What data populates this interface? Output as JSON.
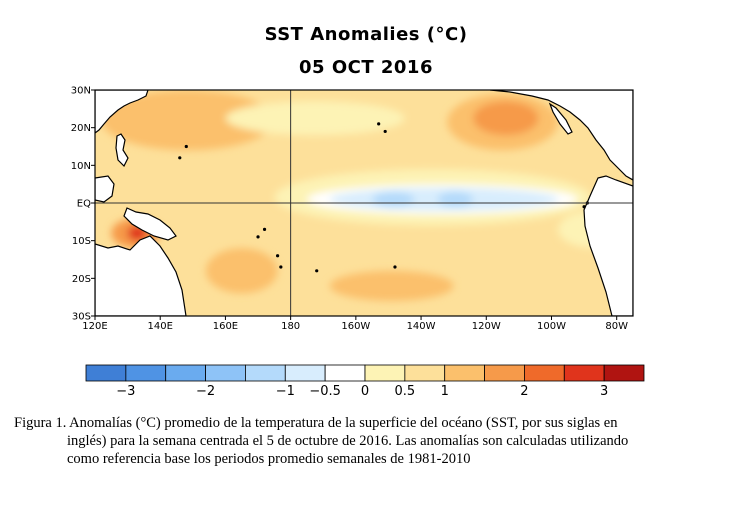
{
  "title": "SST Anomalies (°C)",
  "subtitle": "05 OCT 2016",
  "caption": {
    "line1": "Figura 1. Anomalías (°C) promedio de la temperatura de la superficie del océano (SST, por sus siglas en",
    "line2": "inglés) para la semana centrada el 5 de octubre de 2016. Las anomalías son calculadas utilizando",
    "line3": "como referencia base los periodos promedio semanales de 1981-2010"
  },
  "chart_data": {
    "type": "heatmap",
    "title": "SST Anomalies (°C)",
    "subtitle": "05 OCT 2016",
    "xlim": [
      120,
      285
    ],
    "ylim": [
      -30,
      30
    ],
    "x_ticks": [
      {
        "value": 120,
        "label": "120E"
      },
      {
        "value": 140,
        "label": "140E"
      },
      {
        "value": 160,
        "label": "160E"
      },
      {
        "value": 180,
        "label": "180"
      },
      {
        "value": 200,
        "label": "160W"
      },
      {
        "value": 220,
        "label": "140W"
      },
      {
        "value": 240,
        "label": "120W"
      },
      {
        "value": 260,
        "label": "100W"
      },
      {
        "value": 280,
        "label": "80W"
      }
    ],
    "y_ticks": [
      {
        "value": 30,
        "label": "30N"
      },
      {
        "value": 20,
        "label": "20N"
      },
      {
        "value": 10,
        "label": "10N"
      },
      {
        "value": 0,
        "label": "EQ"
      },
      {
        "value": -10,
        "label": "10S"
      },
      {
        "value": -20,
        "label": "20S"
      },
      {
        "value": -30,
        "label": "30S"
      }
    ],
    "reference_lines": {
      "equator_lat": 0,
      "dateline_lon": 180
    },
    "colorbar": {
      "bounds": [
        -3.5,
        -3,
        -2.5,
        -2,
        -1.5,
        -1,
        -0.5,
        0,
        0.5,
        1,
        1.5,
        2,
        2.5,
        3,
        3.5
      ],
      "colors": [
        "#3f7fd6",
        "#4f93e4",
        "#6aabef",
        "#8ec3f7",
        "#b4dafb",
        "#d8edfd",
        "#ffffff",
        "#fdf3b5",
        "#fde09a",
        "#fbc06c",
        "#f69a4a",
        "#ef6a2a",
        "#e0341c",
        "#b01411"
      ],
      "tick_labels": [
        {
          "value": -3,
          "label": "−3"
        },
        {
          "value": -2,
          "label": "−2"
        },
        {
          "value": -1,
          "label": "−1"
        },
        {
          "value": -0.5,
          "label": "−0.5"
        },
        {
          "value": 0,
          "label": "0"
        },
        {
          "value": 0.5,
          "label": "0.5"
        },
        {
          "value": 1,
          "label": "1"
        },
        {
          "value": 2,
          "label": "2"
        },
        {
          "value": 3,
          "label": "3"
        }
      ]
    },
    "anomaly_regions": [
      {
        "lon": [
          120,
          285
        ],
        "lat": [
          -30,
          30
        ],
        "value": 0.75
      },
      {
        "lon": [
          122,
          175
        ],
        "lat": [
          14,
          30
        ],
        "value": 1.25
      },
      {
        "lon": [
          160,
          215
        ],
        "lat": [
          18,
          27
        ],
        "value": 0.25
      },
      {
        "lon": [
          228,
          262
        ],
        "lat": [
          14,
          29
        ],
        "value": 1.25
      },
      {
        "lon": [
          236,
          256
        ],
        "lat": [
          18,
          27
        ],
        "value": 1.75
      },
      {
        "lon": [
          192,
          230
        ],
        "lat": [
          -26,
          -18
        ],
        "value": 1.25
      },
      {
        "lon": [
          154,
          176
        ],
        "lat": [
          -24,
          -12
        ],
        "value": 1.25
      },
      {
        "lon": [
          125,
          140
        ],
        "lat": [
          -12,
          -4
        ],
        "value": 1.75
      },
      {
        "lon": [
          130,
          136
        ],
        "lat": [
          -10,
          -6
        ],
        "value": 2.75
      },
      {
        "lon": [
          175,
          272
        ],
        "lat": [
          -6,
          9
        ],
        "value": 0.25
      },
      {
        "lon": [
          185,
          268
        ],
        "lat": [
          -3,
          5
        ],
        "value": -0.25
      },
      {
        "lon": [
          192,
          262
        ],
        "lat": [
          -2,
          4
        ],
        "value": -0.75
      },
      {
        "lon": [
          205,
          218
        ],
        "lat": [
          -1,
          3
        ],
        "value": -1.25
      },
      {
        "lon": [
          225,
          236
        ],
        "lat": [
          -1,
          3
        ],
        "value": -1.25
      },
      {
        "lon": [
          262,
          285
        ],
        "lat": [
          -12,
          -2
        ],
        "value": 0.25
      }
    ]
  }
}
